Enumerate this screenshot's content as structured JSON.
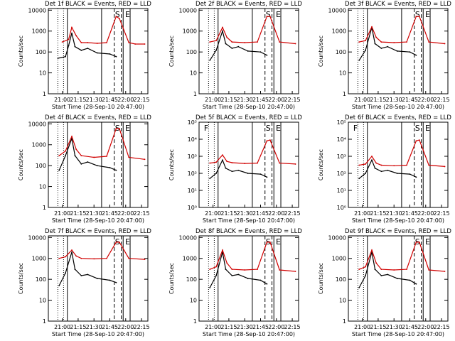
{
  "chart_data": [
    {
      "type": "line",
      "title": "Det 1f BLACK = Events, RED = LLD",
      "xlabel": "Start Time (28-Sep-10 20:47:00)",
      "ylabel": "Counts/sec",
      "x_tick_labels": [
        "21:00",
        "21:15",
        "21:30",
        "21:45",
        "22:00",
        "22:15"
      ],
      "y_tick_labels": [
        "1",
        "10",
        "100",
        "1000",
        "10000"
      ],
      "ylim": [
        1,
        12000
      ],
      "y_scale": "log",
      "markers": [
        "S",
        "E"
      ],
      "series": [
        {
          "color": "#000000",
          "values": [
            [
              20.93,
              50
            ],
            [
              21.05,
              60
            ],
            [
              21.1,
              200
            ],
            [
              21.15,
              800
            ],
            [
              21.2,
              180
            ],
            [
              21.3,
              120
            ],
            [
              21.4,
              150
            ],
            [
              21.55,
              90
            ],
            [
              21.75,
              80
            ],
            [
              21.85,
              60
            ]
          ]
        },
        {
          "color": "#d00000",
          "values": [
            [
              21.0,
              300
            ],
            [
              21.1,
              400
            ],
            [
              21.15,
              1500
            ],
            [
              21.22,
              600
            ],
            [
              21.3,
              280
            ],
            [
              21.4,
              280
            ],
            [
              21.55,
              260
            ],
            [
              21.7,
              280
            ],
            [
              21.85,
              5000
            ],
            [
              21.9,
              4000
            ],
            [
              22.05,
              280
            ],
            [
              22.15,
              240
            ],
            [
              22.3,
              240
            ]
          ]
        }
      ]
    },
    {
      "type": "line",
      "title": "Det 2f BLACK = Events, RED = LLD",
      "xlabel": "Start Time (28-Sep-10 20:47:00)",
      "ylabel": "Counts/sec",
      "x_tick_labels": [
        "21:00",
        "21:15",
        "21:30",
        "21:45",
        "22:00",
        "22:15"
      ],
      "y_tick_labels": [
        "1",
        "10",
        "100",
        "1000",
        "10000"
      ],
      "ylim": [
        1,
        12000
      ],
      "y_scale": "log",
      "markers": [
        "S",
        "E"
      ],
      "series": [
        {
          "color": "#000000",
          "values": [
            [
              20.95,
              40
            ],
            [
              21.05,
              120
            ],
            [
              21.15,
              1000
            ],
            [
              21.2,
              250
            ],
            [
              21.3,
              150
            ],
            [
              21.4,
              180
            ],
            [
              21.55,
              110
            ],
            [
              21.75,
              100
            ],
            [
              21.85,
              70
            ]
          ]
        },
        {
          "color": "#d00000",
          "values": [
            [
              20.95,
              300
            ],
            [
              21.05,
              350
            ],
            [
              21.15,
              1500
            ],
            [
              21.22,
              500
            ],
            [
              21.3,
              300
            ],
            [
              21.5,
              280
            ],
            [
              21.7,
              300
            ],
            [
              21.85,
              5000
            ],
            [
              21.9,
              5000
            ],
            [
              22.05,
              300
            ],
            [
              22.3,
              250
            ]
          ]
        }
      ]
    },
    {
      "type": "line",
      "title": "Det 3f BLACK = Events, RED = LLD",
      "xlabel": "Start Time (28-Sep-10 20:47:00)",
      "ylabel": "Counts/sec",
      "x_tick_labels": [
        "21:00",
        "21:15",
        "21:30",
        "21:45",
        "22:00",
        "22:15"
      ],
      "y_tick_labels": [
        "1",
        "10",
        "100",
        "1000",
        "10000"
      ],
      "ylim": [
        1,
        12000
      ],
      "y_scale": "log",
      "markers": [
        "S",
        "E"
      ],
      "series": [
        {
          "color": "#000000",
          "values": [
            [
              20.95,
              40
            ],
            [
              21.05,
              120
            ],
            [
              21.15,
              1500
            ],
            [
              21.2,
              250
            ],
            [
              21.3,
              150
            ],
            [
              21.4,
              180
            ],
            [
              21.55,
              110
            ],
            [
              21.75,
              100
            ],
            [
              21.85,
              70
            ]
          ]
        },
        {
          "color": "#d00000",
          "values": [
            [
              20.95,
              300
            ],
            [
              21.05,
              350
            ],
            [
              21.15,
              1600
            ],
            [
              21.22,
              500
            ],
            [
              21.3,
              300
            ],
            [
              21.5,
              280
            ],
            [
              21.7,
              300
            ],
            [
              21.85,
              5000
            ],
            [
              21.9,
              5000
            ],
            [
              22.05,
              300
            ],
            [
              22.3,
              250
            ]
          ]
        }
      ]
    },
    {
      "type": "line",
      "title": "Det 4f BLACK = Events, RED = LLD",
      "xlabel": "Start Time (28-Sep-10 20:47:00)",
      "ylabel": "Counts/sec",
      "x_tick_labels": [
        "21:00",
        "21:15",
        "21:30",
        "21:45",
        "22:00",
        "22:15"
      ],
      "y_tick_labels": [
        "1",
        "10",
        "100",
        "1000",
        "10000"
      ],
      "ylim": [
        1,
        12000
      ],
      "y_scale": "log",
      "markers": [
        "S",
        "E"
      ],
      "series": [
        {
          "color": "#000000",
          "values": [
            [
              20.95,
              60
            ],
            [
              21.05,
              300
            ],
            [
              21.15,
              2000
            ],
            [
              21.2,
              300
            ],
            [
              21.3,
              120
            ],
            [
              21.4,
              150
            ],
            [
              21.55,
              100
            ],
            [
              21.75,
              80
            ],
            [
              21.85,
              60
            ]
          ]
        },
        {
          "color": "#d00000",
          "values": [
            [
              20.95,
              300
            ],
            [
              21.05,
              500
            ],
            [
              21.15,
              2500
            ],
            [
              21.22,
              600
            ],
            [
              21.3,
              300
            ],
            [
              21.5,
              250
            ],
            [
              21.7,
              280
            ],
            [
              21.85,
              6000
            ],
            [
              21.9,
              6000
            ],
            [
              22.05,
              250
            ],
            [
              22.3,
              200
            ]
          ]
        }
      ]
    },
    {
      "type": "line",
      "title": "Det 5f BLACK = Events, RED = LLD",
      "xlabel": "Start Time (28-Sep-10 20:47:00)",
      "ylabel": "Counts/sec",
      "x_tick_labels": [
        "21:00",
        "21:15",
        "21:30",
        "21:45",
        "22:00",
        "22:15"
      ],
      "y_tick_labels": [
        "10⁰",
        "10¹",
        "10²",
        "10³",
        "10⁴",
        "10⁵"
      ],
      "ylim": [
        1,
        100000
      ],
      "y_scale": "log",
      "markers": [
        "F",
        "S",
        "E"
      ],
      "series": [
        {
          "color": "#000000",
          "values": [
            [
              20.95,
              50
            ],
            [
              21.05,
              100
            ],
            [
              21.15,
              600
            ],
            [
              21.2,
              200
            ],
            [
              21.3,
              130
            ],
            [
              21.4,
              150
            ],
            [
              21.55,
              100
            ],
            [
              21.75,
              90
            ],
            [
              21.85,
              60
            ]
          ]
        },
        {
          "color": "#d00000",
          "values": [
            [
              20.95,
              400
            ],
            [
              21.05,
              450
            ],
            [
              21.15,
              1200
            ],
            [
              21.22,
              500
            ],
            [
              21.3,
              420
            ],
            [
              21.5,
              380
            ],
            [
              21.7,
              400
            ],
            [
              21.85,
              8000
            ],
            [
              21.9,
              9000
            ],
            [
              22.05,
              400
            ],
            [
              22.3,
              350
            ]
          ]
        }
      ]
    },
    {
      "type": "line",
      "title": "Det 6f BLACK = Events, RED = LLD",
      "xlabel": "Start Time (28-Sep-10 20:47:00)",
      "ylabel": "Counts/sec",
      "x_tick_labels": [
        "21:00",
        "21:15",
        "21:30",
        "21:45",
        "22:00",
        "22:15"
      ],
      "y_tick_labels": [
        "10⁰",
        "10¹",
        "10²",
        "10³",
        "10⁴",
        "10⁵"
      ],
      "ylim": [
        1,
        100000
      ],
      "y_scale": "log",
      "markers": [
        "F",
        "S",
        "E"
      ],
      "series": [
        {
          "color": "#000000",
          "values": [
            [
              20.95,
              50
            ],
            [
              21.05,
              100
            ],
            [
              21.15,
              600
            ],
            [
              21.2,
              200
            ],
            [
              21.3,
              130
            ],
            [
              21.4,
              150
            ],
            [
              21.55,
              100
            ],
            [
              21.75,
              90
            ],
            [
              21.85,
              60
            ]
          ]
        },
        {
          "color": "#d00000",
          "values": [
            [
              20.95,
              300
            ],
            [
              21.05,
              350
            ],
            [
              21.15,
              1000
            ],
            [
              21.22,
              400
            ],
            [
              21.3,
              300
            ],
            [
              21.5,
              280
            ],
            [
              21.7,
              300
            ],
            [
              21.85,
              8000
            ],
            [
              21.9,
              9000
            ],
            [
              22.05,
              300
            ],
            [
              22.3,
              250
            ]
          ]
        }
      ]
    },
    {
      "type": "line",
      "title": "Det 7f BLACK = Events, RED = LLD",
      "xlabel": "Start Time (28-Sep-10 20:47:00)",
      "ylabel": "Counts/sec",
      "x_tick_labels": [
        "21:00",
        "21:15",
        "21:30",
        "21:45",
        "22:00",
        "22:15"
      ],
      "y_tick_labels": [
        "1",
        "10",
        "100",
        "1000",
        "10000"
      ],
      "ylim": [
        1,
        12000
      ],
      "y_scale": "log",
      "markers": [
        "S",
        "E"
      ],
      "series": [
        {
          "color": "#000000",
          "values": [
            [
              20.95,
              50
            ],
            [
              21.05,
              200
            ],
            [
              21.15,
              2000
            ],
            [
              21.2,
              300
            ],
            [
              21.3,
              150
            ],
            [
              21.4,
              170
            ],
            [
              21.55,
              110
            ],
            [
              21.75,
              90
            ],
            [
              21.85,
              70
            ]
          ]
        },
        {
          "color": "#d00000",
          "values": [
            [
              20.95,
              1000
            ],
            [
              21.05,
              1200
            ],
            [
              21.15,
              2500
            ],
            [
              21.22,
              1300
            ],
            [
              21.3,
              1000
            ],
            [
              21.5,
              950
            ],
            [
              21.7,
              1000
            ],
            [
              21.85,
              6000
            ],
            [
              21.9,
              6000
            ],
            [
              22.05,
              1000
            ],
            [
              22.3,
              900
            ]
          ]
        }
      ]
    },
    {
      "type": "line",
      "title": "Det 8f BLACK = Events, RED = LLD",
      "xlabel": "Start Time (28-Sep-10 20:47:00)",
      "ylabel": "Counts/sec",
      "x_tick_labels": [
        "21:00",
        "21:15",
        "21:30",
        "21:45",
        "22:00",
        "22:15"
      ],
      "y_tick_labels": [
        "1",
        "10",
        "100",
        "1000",
        "10000"
      ],
      "ylim": [
        1,
        12000
      ],
      "y_scale": "log",
      "markers": [
        "S",
        "E"
      ],
      "series": [
        {
          "color": "#000000",
          "values": [
            [
              20.95,
              40
            ],
            [
              21.05,
              150
            ],
            [
              21.15,
              2000
            ],
            [
              21.2,
              300
            ],
            [
              21.3,
              150
            ],
            [
              21.4,
              170
            ],
            [
              21.55,
              110
            ],
            [
              21.75,
              90
            ],
            [
              21.85,
              60
            ]
          ]
        },
        {
          "color": "#d00000",
          "values": [
            [
              20.95,
              300
            ],
            [
              21.05,
              400
            ],
            [
              21.15,
              2500
            ],
            [
              21.22,
              600
            ],
            [
              21.3,
              300
            ],
            [
              21.5,
              280
            ],
            [
              21.7,
              300
            ],
            [
              21.85,
              6000
            ],
            [
              21.9,
              6000
            ],
            [
              22.05,
              280
            ],
            [
              22.3,
              240
            ]
          ]
        }
      ]
    },
    {
      "type": "line",
      "title": "Det 9f BLACK = Events, RED = LLD",
      "xlabel": "Start Time (28-Sep-10 20:47:00)",
      "ylabel": "Counts/sec",
      "x_tick_labels": [
        "21:00",
        "21:15",
        "21:30",
        "21:45",
        "22:00",
        "22:15"
      ],
      "y_tick_labels": [
        "1",
        "10",
        "100",
        "1000",
        "10000"
      ],
      "ylim": [
        1,
        12000
      ],
      "y_scale": "log",
      "markers": [
        "S",
        "E"
      ],
      "series": [
        {
          "color": "#000000",
          "values": [
            [
              20.95,
              40
            ],
            [
              21.05,
              150
            ],
            [
              21.15,
              2000
            ],
            [
              21.2,
              300
            ],
            [
              21.3,
              150
            ],
            [
              21.4,
              170
            ],
            [
              21.55,
              110
            ],
            [
              21.75,
              90
            ],
            [
              21.85,
              60
            ]
          ]
        },
        {
          "color": "#d00000",
          "values": [
            [
              20.95,
              300
            ],
            [
              21.05,
              400
            ],
            [
              21.15,
              2500
            ],
            [
              21.22,
              600
            ],
            [
              21.3,
              300
            ],
            [
              21.5,
              280
            ],
            [
              21.7,
              300
            ],
            [
              21.85,
              6000
            ],
            [
              21.9,
              6000
            ],
            [
              22.05,
              280
            ],
            [
              22.3,
              240
            ]
          ]
        }
      ]
    }
  ]
}
